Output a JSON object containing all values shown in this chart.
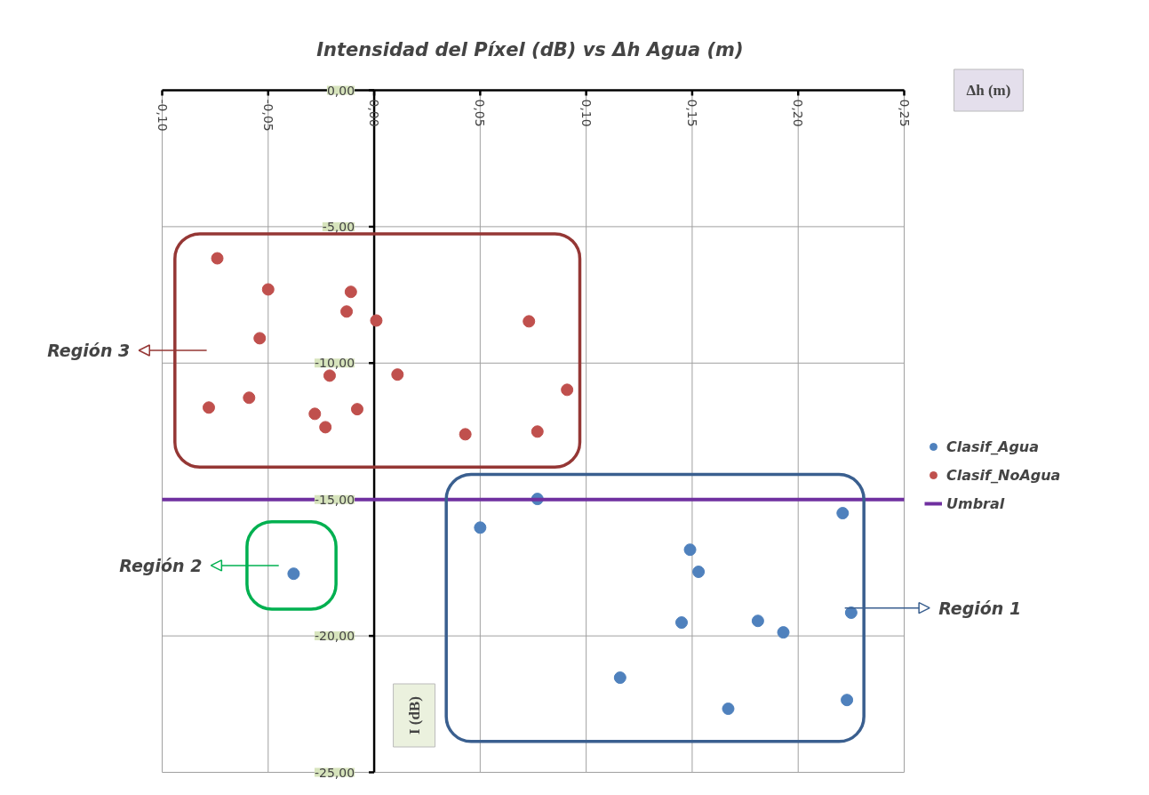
{
  "chart_data": {
    "type": "scatter",
    "title": "Intensidad del Píxel (dB) vs  Δh Agua (m)",
    "xlabel": "Δh (m)",
    "ylabel": "I (dB)",
    "xlim": [
      -0.1,
      0.25
    ],
    "ylim": [
      -25,
      0
    ],
    "xticks": [
      {
        "value": -0.1,
        "label": "-0,10"
      },
      {
        "value": -0.05,
        "label": "-0,05"
      },
      {
        "value": 0,
        "label": "0,00"
      },
      {
        "value": 0.05,
        "label": "0,05"
      },
      {
        "value": 0.1,
        "label": "0,10"
      },
      {
        "value": 0.15,
        "label": "0,15"
      },
      {
        "value": 0.2,
        "label": "0,20"
      },
      {
        "value": 0.25,
        "label": "0,25"
      }
    ],
    "yticks": [
      {
        "value": 0,
        "label": "0,00"
      },
      {
        "value": -5,
        "label": "-5,00"
      },
      {
        "value": -10,
        "label": "-10,00"
      },
      {
        "value": -15,
        "label": "-15,00"
      },
      {
        "value": -20,
        "label": "-20,00"
      },
      {
        "value": -25,
        "label": "-25,00"
      }
    ],
    "grid": true,
    "legend": "right",
    "marker": "circle",
    "series": [
      {
        "name": "Clasif_Agua",
        "color": "#4f81bd",
        "x": [
          0.077,
          0.05,
          0.221,
          0.149,
          0.153,
          -0.038,
          0.225,
          0.145,
          0.181,
          0.193,
          0.116,
          0.167,
          0.223
        ],
        "values": [
          -14.98,
          -16.03,
          -15.5,
          -16.84,
          -17.65,
          -17.72,
          -19.15,
          -19.51,
          -19.45,
          -19.87,
          -21.53,
          -22.67,
          -22.35
        ]
      },
      {
        "name": "Clasif_NoAgua",
        "color": "#c0504d",
        "x": [
          -0.074,
          -0.05,
          -0.011,
          -0.013,
          0.001,
          0.073,
          -0.054,
          -0.021,
          0.011,
          0.091,
          -0.078,
          -0.059,
          -0.028,
          -0.008,
          -0.023,
          0.043,
          0.077
        ],
        "values": [
          -6.16,
          -7.3,
          -7.39,
          -8.11,
          -8.44,
          -8.47,
          -9.09,
          -10.46,
          -10.42,
          -10.98,
          -11.63,
          -11.27,
          -11.86,
          -11.69,
          -12.35,
          -12.61,
          -12.51
        ]
      },
      {
        "name": "Umbral",
        "type": "line",
        "marker": "none",
        "color": "#7030a0",
        "x": [
          -0.1,
          0.25
        ],
        "values": [
          -15,
          -15
        ]
      }
    ],
    "annotations": [
      "Región 1",
      "Región 2",
      "Región 3"
    ]
  }
}
